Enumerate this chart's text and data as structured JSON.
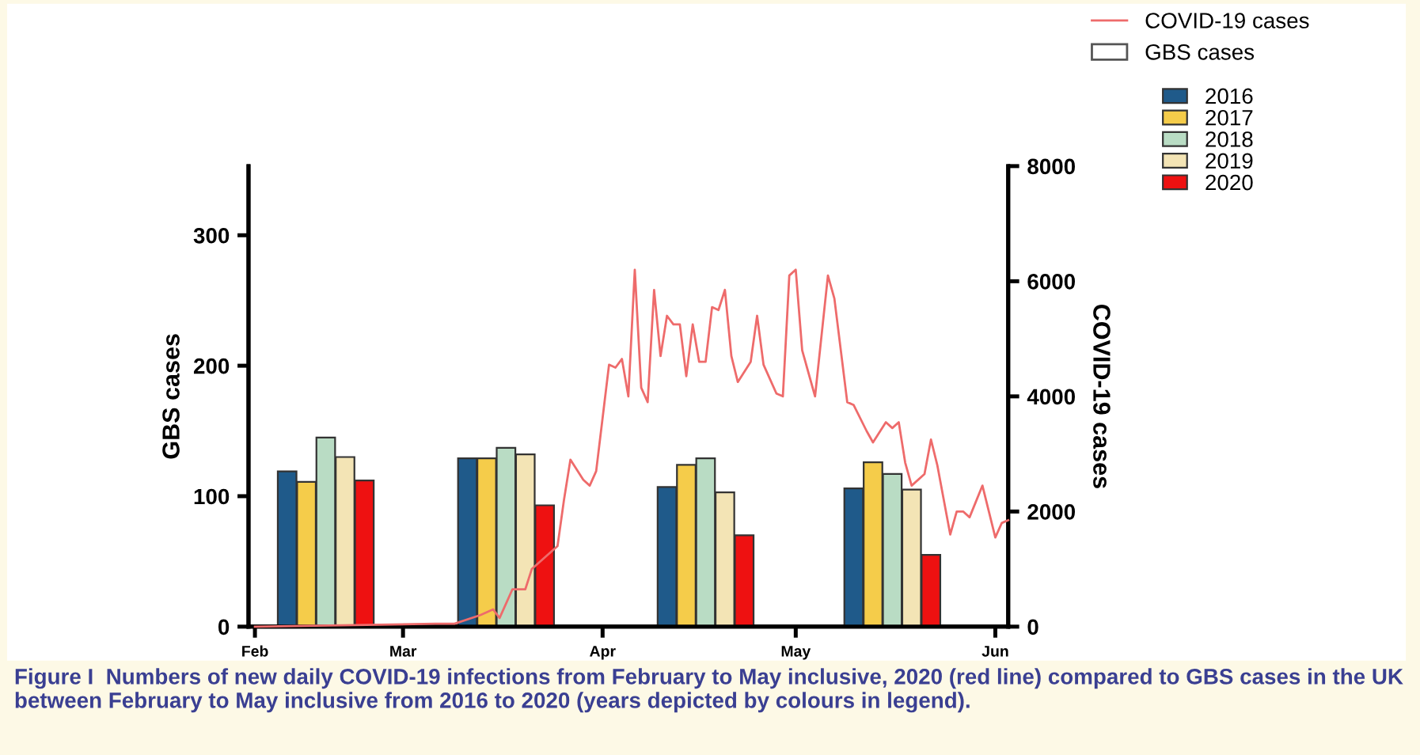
{
  "chart_data": {
    "type": "bar",
    "ylabel": "GBS cases",
    "y2label": "COVID-19 cases",
    "legend_title": "GBS cases",
    "annotations": [
      "Figure I  Numbers of new daily COVID-19 infections from February to May inclusive, 2020 (red line) compared to GBS cases in the UK between February to May inclusive from 2016 to 2020 (years depicted by colours in legend)."
    ],
    "xlim": [
      "2020-02-06",
      "2020-06-03"
    ],
    "xticks": [
      {
        "value": "2020-02-07",
        "label": "Feb"
      },
      {
        "value": "2020-03-01",
        "label": "Mar"
      },
      {
        "value": "2020-04-01",
        "label": "Apr"
      },
      {
        "value": "2020-05-01",
        "label": "May"
      },
      {
        "value": "2020-06-01",
        "label": "Jun"
      }
    ],
    "ylim": [
      0,
      353
    ],
    "yticks": [
      0,
      100,
      200,
      300
    ],
    "y2lim": [
      0,
      8000
    ],
    "y2ticks": [
      0,
      2000,
      4000,
      6000,
      8000
    ],
    "legend": "top right",
    "series": [
      {
        "name": "COVID-19 cases",
        "type": "line",
        "axis": "y2",
        "color": "#ee6b6b",
        "x": [
          "2020-02-07",
          "2020-03-06",
          "2020-03-09",
          "2020-03-13",
          "2020-03-15",
          "2020-03-16",
          "2020-03-18",
          "2020-03-20",
          "2020-03-21",
          "2020-03-25",
          "2020-03-26",
          "2020-03-27",
          "2020-03-29",
          "2020-03-30",
          "2020-03-31",
          "2020-04-02",
          "2020-04-03",
          "2020-04-04",
          "2020-04-05",
          "2020-04-06",
          "2020-04-07",
          "2020-04-08",
          "2020-04-09",
          "2020-04-10",
          "2020-04-11",
          "2020-04-12",
          "2020-04-13",
          "2020-04-14",
          "2020-04-15",
          "2020-04-16",
          "2020-04-17",
          "2020-04-18",
          "2020-04-19",
          "2020-04-20",
          "2020-04-21",
          "2020-04-22",
          "2020-04-24",
          "2020-04-25",
          "2020-04-26",
          "2020-04-28",
          "2020-04-29",
          "2020-04-30",
          "2020-05-01",
          "2020-05-02",
          "2020-05-04",
          "2020-05-06",
          "2020-05-07",
          "2020-05-09",
          "2020-05-10",
          "2020-05-12",
          "2020-05-13",
          "2020-05-15",
          "2020-05-16",
          "2020-05-17",
          "2020-05-18",
          "2020-05-19",
          "2020-05-21",
          "2020-05-22",
          "2020-05-23",
          "2020-05-25",
          "2020-05-26",
          "2020-05-27",
          "2020-05-28",
          "2020-05-30",
          "2020-05-31",
          "2020-06-01",
          "2020-06-02",
          "2020-06-03"
        ],
        "values": [
          0,
          50,
          50,
          200,
          300,
          150,
          650,
          650,
          1000,
          1400,
          2200,
          2900,
          2550,
          2450,
          2700,
          4550,
          4500,
          4650,
          4000,
          6200,
          4150,
          3900,
          5850,
          4700,
          5400,
          5250,
          5250,
          4350,
          5250,
          4600,
          4600,
          5550,
          5500,
          5850,
          4700,
          4250,
          4600,
          5400,
          4550,
          4050,
          4000,
          6100,
          6200,
          4800,
          4000,
          6100,
          5700,
          3900,
          3850,
          3400,
          3200,
          3550,
          3450,
          3550,
          2850,
          2450,
          2650,
          3250,
          2800,
          1600,
          2000,
          2000,
          1900,
          2450,
          2000,
          1550,
          1800,
          1850
        ]
      },
      {
        "name": "2016",
        "color": "#1f5a8a",
        "x": [
          "2020-02-12",
          "2020-03-11",
          "2020-04-11",
          "2020-05-10"
        ],
        "values": [
          119,
          129,
          107,
          106
        ]
      },
      {
        "name": "2017",
        "color": "#f5cc4a",
        "x": [
          "2020-02-15",
          "2020-03-14",
          "2020-04-14",
          "2020-05-13"
        ],
        "values": [
          111,
          129,
          124,
          126
        ]
      },
      {
        "name": "2018",
        "color": "#b9dcc4",
        "x": [
          "2020-02-18",
          "2020-03-17",
          "2020-04-17",
          "2020-05-16"
        ],
        "values": [
          145,
          137,
          129,
          117
        ]
      },
      {
        "name": "2019",
        "color": "#f3e4b5",
        "x": [
          "2020-02-21",
          "2020-03-20",
          "2020-04-20",
          "2020-05-19"
        ],
        "values": [
          130,
          132,
          103,
          105
        ]
      },
      {
        "name": "2020",
        "color": "#ee1111",
        "x": [
          "2020-02-24",
          "2020-03-23",
          "2020-04-23",
          "2020-05-22"
        ],
        "values": [
          112,
          93,
          70,
          55
        ]
      }
    ]
  }
}
